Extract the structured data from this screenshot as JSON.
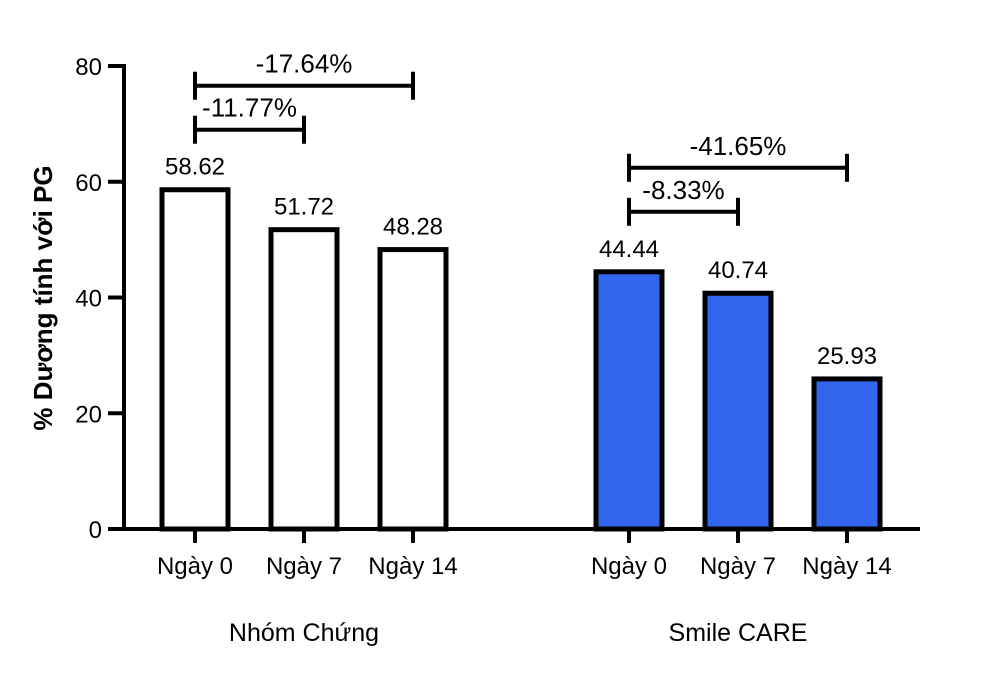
{
  "chart_data": {
    "type": "bar",
    "ylabel": "% Dương tính với PG",
    "xlabel": "",
    "ylim": [
      0,
      80
    ],
    "yticks": [
      0,
      20,
      40,
      60,
      80
    ],
    "groups": [
      {
        "name": "Nhóm Chứng",
        "fill": "#ffffff",
        "categories": [
          "Ngày 0",
          "Ngày 7",
          "Ngày 14"
        ],
        "values": [
          58.62,
          51.72,
          48.28
        ],
        "value_labels": [
          "58.62",
          "51.72",
          "48.28"
        ],
        "brackets": [
          {
            "from": 0,
            "to": 1,
            "label": "-11.77%"
          },
          {
            "from": 0,
            "to": 2,
            "label": "-17.64%"
          }
        ]
      },
      {
        "name": "Smile CARE",
        "fill": "#3366ee",
        "categories": [
          "Ngày 0",
          "Ngày 7",
          "Ngày 14"
        ],
        "values": [
          44.44,
          40.74,
          25.93
        ],
        "value_labels": [
          "44.44",
          "40.74",
          "25.93"
        ],
        "brackets": [
          {
            "from": 0,
            "to": 1,
            "label": "-8.33%"
          },
          {
            "from": 0,
            "to": 2,
            "label": "-41.65%"
          }
        ]
      }
    ]
  }
}
